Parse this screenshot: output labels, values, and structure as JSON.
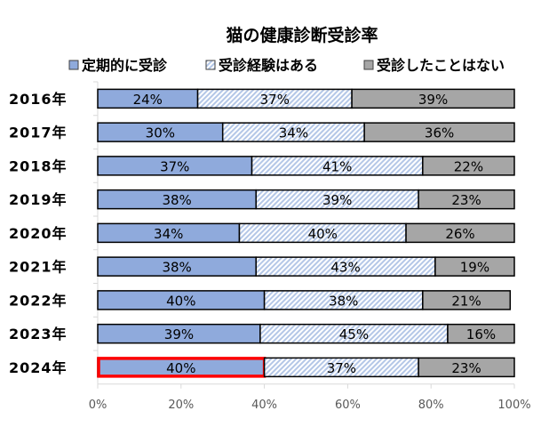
{
  "chart_data": {
    "type": "bar",
    "orientation": "horizontal",
    "stacked": true,
    "title": "猫の健康診断受診率",
    "categories": [
      "2016年",
      "2017年",
      "2018年",
      "2019年",
      "2020年",
      "2021年",
      "2022年",
      "2023年",
      "2024年"
    ],
    "series": [
      {
        "name": "定期的に受診",
        "values": [
          24,
          30,
          37,
          38,
          34,
          38,
          40,
          39,
          40
        ],
        "color": "#8faadc",
        "pattern": "solid"
      },
      {
        "name": "受診経験はある",
        "values": [
          37,
          34,
          41,
          39,
          40,
          43,
          38,
          45,
          37
        ],
        "color": "#b4c7e7",
        "pattern": "diagonal-hatch"
      },
      {
        "name": "受診したことはない",
        "values": [
          39,
          36,
          22,
          23,
          26,
          19,
          21,
          16,
          23
        ],
        "color": "#a6a6a6",
        "pattern": "solid"
      }
    ],
    "data_labels": [
      [
        "24%",
        "37%",
        "39%"
      ],
      [
        "30%",
        "34%",
        "36%"
      ],
      [
        "37%",
        "41%",
        "22%"
      ],
      [
        "38%",
        "39%",
        "23%"
      ],
      [
        "34%",
        "40%",
        "26%"
      ],
      [
        "38%",
        "43%",
        "19%"
      ],
      [
        "40%",
        "38%",
        "21%"
      ],
      [
        "39%",
        "45%",
        "16%"
      ],
      [
        "40%",
        "37%",
        "23%"
      ]
    ],
    "xlim": [
      0,
      100
    ],
    "xticks": [
      "0%",
      "20%",
      "40%",
      "60%",
      "80%",
      "100%"
    ],
    "legend": "top",
    "grid": false,
    "highlight": {
      "category": "2024年",
      "series": "定期的に受診",
      "color": "#ff0000"
    }
  }
}
